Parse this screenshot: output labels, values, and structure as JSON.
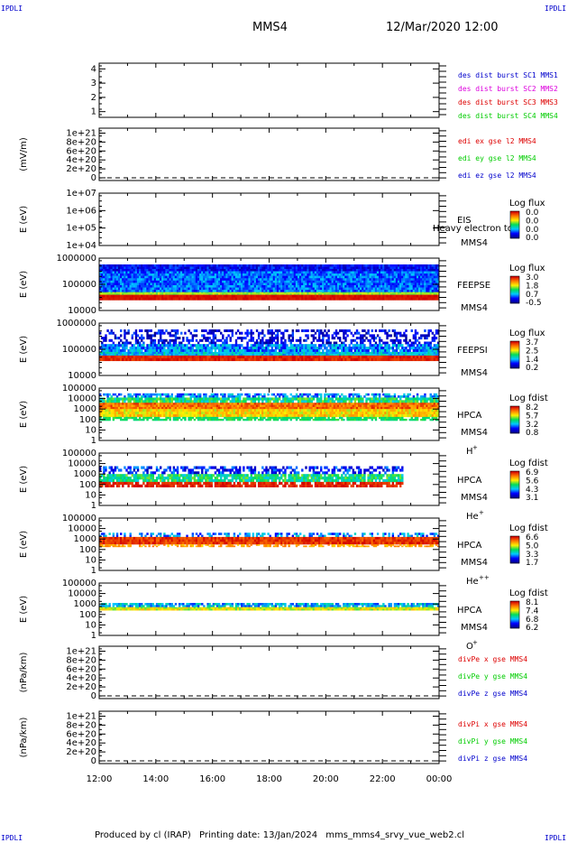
{
  "header": {
    "corner_text": "IPDLI",
    "title": "MMS4",
    "date": "12/Mar/2020 12:00"
  },
  "footer": {
    "produced_by": "Produced by cl (IRAP)",
    "printing_date": "Printing date: 13/Jan/2024",
    "filename": "mms_mms4_srvy_vue_web2.cl"
  },
  "colors": {
    "blue": "#0000cc",
    "magenta": "#dd00dd",
    "red": "#dd0000",
    "green": "#00cc00"
  },
  "chart_data": [
    {
      "type": "line",
      "ylabel": "",
      "ticks": [
        "4",
        "3",
        "2",
        "1"
      ],
      "yrange": [
        0.6,
        4.4
      ],
      "legend": [
        {
          "text": "des dist burst SC1 MMS1",
          "color": "#0000cc"
        },
        {
          "text": "des dist burst SC2 MMS2",
          "color": "#dd00dd"
        },
        {
          "text": "des dist burst SC3 MMS3",
          "color": "#dd0000"
        },
        {
          "text": "des dist burst SC4 MMS4",
          "color": "#00cc00"
        }
      ]
    },
    {
      "type": "line",
      "ylabel": "(mV/m)",
      "ticks": [
        "1e+21",
        "8e+20",
        "6e+20",
        "4e+20",
        "2e+20",
        "0"
      ],
      "yrange": [
        0,
        1.05e+21
      ],
      "zero_line": true,
      "legend": [
        {
          "text": "edi ex gse l2 MMS4",
          "color": "#dd0000"
        },
        {
          "text": "edi ey gse l2 MMS4",
          "color": "#00cc00"
        },
        {
          "text": "edi ez gse l2 MMS4",
          "color": "#0000cc"
        }
      ]
    },
    {
      "type": "heatmap",
      "ylabel": "E (eV)",
      "ticks": [
        "1e+07",
        "1e+06",
        "1e+05",
        "1e+04"
      ],
      "instrument": "EIS",
      "overlay_text": "Heavy electron to",
      "spacecraft": "MMS4",
      "colorbar_title": "Log flux",
      "colorbar_ticks": [
        "0.0",
        "0.0",
        "0.0",
        "0.0"
      ]
    },
    {
      "type": "heatmap",
      "ylabel": "E (eV)",
      "ticks": [
        "1000000",
        "100000",
        "10000"
      ],
      "instrument": "FEEPSE",
      "spacecraft": "MMS4",
      "colorbar_title": "Log flux",
      "colorbar_ticks": [
        "3.0",
        "1.8",
        "0.7",
        "-0.5"
      ]
    },
    {
      "type": "heatmap",
      "ylabel": "E (eV)",
      "ticks": [
        "1000000",
        "100000",
        "10000"
      ],
      "instrument": "FEEPSI",
      "spacecraft": "MMS4",
      "colorbar_title": "Log flux",
      "colorbar_ticks": [
        "3.7",
        "2.5",
        "1.4",
        "0.2"
      ]
    },
    {
      "type": "heatmap",
      "ylabel": "E (eV)",
      "ticks": [
        "100000",
        "10000",
        "1000",
        "100",
        "10",
        "1"
      ],
      "instrument": "HPCA",
      "spacecraft": "MMS4",
      "species": "H",
      "species_sup": "+",
      "colorbar_title": "Log fdist",
      "colorbar_ticks": [
        "8.2",
        "5.7",
        "3.2",
        "0.8"
      ]
    },
    {
      "type": "heatmap",
      "ylabel": "E (eV)",
      "ticks": [
        "100000",
        "10000",
        "1000",
        "100",
        "10",
        "1"
      ],
      "instrument": "HPCA",
      "spacecraft": "MMS4",
      "species": "He",
      "species_sup": "+",
      "colorbar_title": "Log fdist",
      "colorbar_ticks": [
        "6.9",
        "5.6",
        "4.3",
        "3.1"
      ]
    },
    {
      "type": "heatmap",
      "ylabel": "E (eV)",
      "ticks": [
        "100000",
        "10000",
        "1000",
        "100",
        "10",
        "1"
      ],
      "instrument": "HPCA",
      "spacecraft": "MMS4",
      "species": "He",
      "species_sup": "++",
      "colorbar_title": "Log fdist",
      "colorbar_ticks": [
        "6.6",
        "5.0",
        "3.3",
        "1.7"
      ]
    },
    {
      "type": "heatmap",
      "ylabel": "E (eV)",
      "ticks": [
        "100000",
        "10000",
        "1000",
        "100",
        "10",
        "1"
      ],
      "instrument": "HPCA",
      "spacecraft": "MMS4",
      "species": "O",
      "species_sup": "+",
      "colorbar_title": "Log fdist",
      "colorbar_ticks": [
        "8.1",
        "7.4",
        "6.8",
        "6.2"
      ]
    },
    {
      "type": "line",
      "ylabel": "(nPa/km)",
      "ticks": [
        "1e+21",
        "8e+20",
        "6e+20",
        "4e+20",
        "2e+20",
        "0"
      ],
      "yrange": [
        0,
        1.05e+21
      ],
      "zero_line": true,
      "legend": [
        {
          "text": "divPe x gse MMS4",
          "color": "#dd0000"
        },
        {
          "text": "divPe y gse MMS4",
          "color": "#00cc00"
        },
        {
          "text": "divPe z gse MMS4",
          "color": "#0000cc"
        }
      ]
    },
    {
      "type": "line",
      "ylabel": "(nPa/km)",
      "ticks": [
        "1e+21",
        "8e+20",
        "6e+20",
        "4e+20",
        "2e+20",
        "0"
      ],
      "yrange": [
        0,
        1.05e+21
      ],
      "zero_line": true,
      "legend": [
        {
          "text": "divPi x gse MMS4",
          "color": "#dd0000"
        },
        {
          "text": "divPi y gse MMS4",
          "color": "#00cc00"
        },
        {
          "text": "divPi z gse MMS4",
          "color": "#0000cc"
        }
      ]
    }
  ],
  "xaxis": {
    "ticks": [
      "12:00",
      "14:00",
      "16:00",
      "18:00",
      "20:00",
      "22:00",
      "00:00"
    ]
  }
}
